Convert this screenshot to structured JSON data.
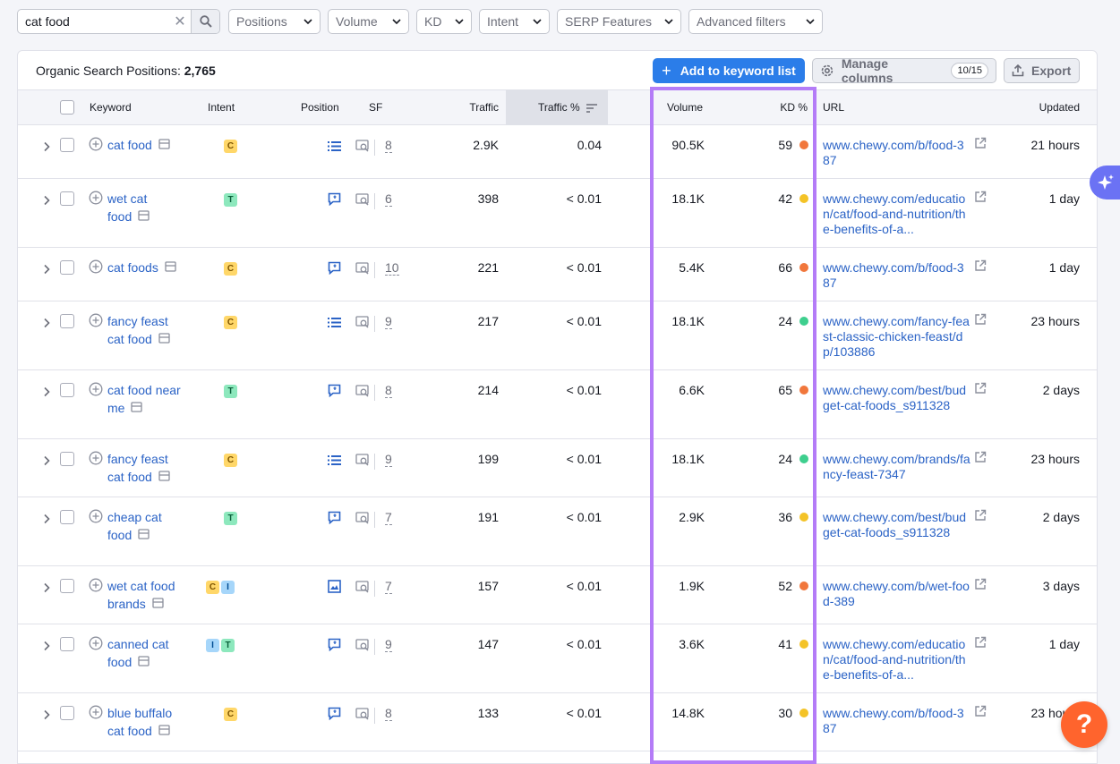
{
  "filters": {
    "search_value": "cat food",
    "clear_label": "✕",
    "buttons": [
      "Positions",
      "Volume",
      "KD",
      "Intent",
      "SERP Features",
      "Advanced filters"
    ]
  },
  "header": {
    "title_prefix": "Organic Search Positions:",
    "title_count": "2,765",
    "add_label": "Add to keyword list",
    "add_plus": "+",
    "manage_label": "Manage columns",
    "manage_badge": "10/15",
    "export_label": "Export"
  },
  "columns": {
    "keyword": "Keyword",
    "intent": "Intent",
    "position": "Position",
    "sf": "SF",
    "traffic": "Traffic",
    "traffic_pct": "Traffic %",
    "volume": "Volume",
    "kd": "KD %",
    "url": "URL",
    "updated": "Updated"
  },
  "colors": {
    "kd_orange": "#f1773c",
    "kd_yellow": "#f4c327",
    "kd_green": "#3ecf8e",
    "highlight": "#b47cf7",
    "accent": "#2b7de9"
  },
  "rows": [
    {
      "keyword": "cat food",
      "intents": [
        "C"
      ],
      "serp_icon": "list-icon",
      "sf": "8",
      "traffic": "2.9K",
      "traffic_pct": "0.04",
      "volume": "90.5K",
      "kd": "59",
      "kd_color": "orange",
      "url": "www.chewy.com/b/food-387",
      "updated": "21 hours"
    },
    {
      "keyword": "wet cat food",
      "intents": [
        "T"
      ],
      "serp_icon": "feature-snippet-icon",
      "sf": "6",
      "traffic": "398",
      "traffic_pct": "< 0.01",
      "volume": "18.1K",
      "kd": "42",
      "kd_color": "yellow",
      "url": "www.chewy.com/education/cat/food-and-nutrition/the-benefits-of-a...",
      "updated": "1 day"
    },
    {
      "keyword": "cat foods",
      "intents": [
        "C"
      ],
      "serp_icon": "feature-snippet-icon",
      "sf": "10",
      "traffic": "221",
      "traffic_pct": "< 0.01",
      "volume": "5.4K",
      "kd": "66",
      "kd_color": "orange",
      "url": "www.chewy.com/b/food-387",
      "updated": "1 day"
    },
    {
      "keyword": "fancy feast cat food",
      "intents": [
        "C"
      ],
      "serp_icon": "list-icon",
      "sf": "9",
      "traffic": "217",
      "traffic_pct": "< 0.01",
      "volume": "18.1K",
      "kd": "24",
      "kd_color": "green",
      "url": "www.chewy.com/fancy-feast-classic-chicken-feast/dp/103886",
      "updated": "23 hours"
    },
    {
      "keyword": "cat food near me",
      "intents": [
        "T"
      ],
      "serp_icon": "feature-snippet-icon",
      "sf": "8",
      "traffic": "214",
      "traffic_pct": "< 0.01",
      "volume": "6.6K",
      "kd": "65",
      "kd_color": "orange",
      "url": "www.chewy.com/best/budget-cat-foods_s911328",
      "updated": "2 days"
    },
    {
      "keyword": "fancy feast cat food",
      "intents": [
        "C"
      ],
      "serp_icon": "list-icon",
      "sf": "9",
      "traffic": "199",
      "traffic_pct": "< 0.01",
      "volume": "18.1K",
      "kd": "24",
      "kd_color": "green",
      "url": "www.chewy.com/brands/fancy-feast-7347",
      "updated": "23 hours"
    },
    {
      "keyword": "cheap cat food",
      "intents": [
        "T"
      ],
      "serp_icon": "feature-snippet-icon",
      "sf": "7",
      "traffic": "191",
      "traffic_pct": "< 0.01",
      "volume": "2.9K",
      "kd": "36",
      "kd_color": "yellow",
      "url": "www.chewy.com/best/budget-cat-foods_s911328",
      "updated": "2 days"
    },
    {
      "keyword": "wet cat food brands",
      "intents": [
        "C",
        "I"
      ],
      "serp_icon": "image-pack-icon",
      "sf": "7",
      "traffic": "157",
      "traffic_pct": "< 0.01",
      "volume": "1.9K",
      "kd": "52",
      "kd_color": "orange",
      "url": "www.chewy.com/b/wet-food-389",
      "updated": "3 days"
    },
    {
      "keyword": "canned cat food",
      "intents": [
        "I",
        "T"
      ],
      "serp_icon": "feature-snippet-icon",
      "sf": "9",
      "traffic": "147",
      "traffic_pct": "< 0.01",
      "volume": "3.6K",
      "kd": "41",
      "kd_color": "yellow",
      "url": "www.chewy.com/education/cat/food-and-nutrition/the-benefits-of-a...",
      "updated": "1 day"
    },
    {
      "keyword": "blue buffalo cat food",
      "intents": [
        "C"
      ],
      "serp_icon": "feature-snippet-icon",
      "sf": "8",
      "traffic": "133",
      "traffic_pct": "< 0.01",
      "volume": "14.8K",
      "kd": "30",
      "kd_color": "yellow",
      "url": "www.chewy.com/b/food-387",
      "updated": "23 hours"
    }
  ],
  "help_label": "?"
}
